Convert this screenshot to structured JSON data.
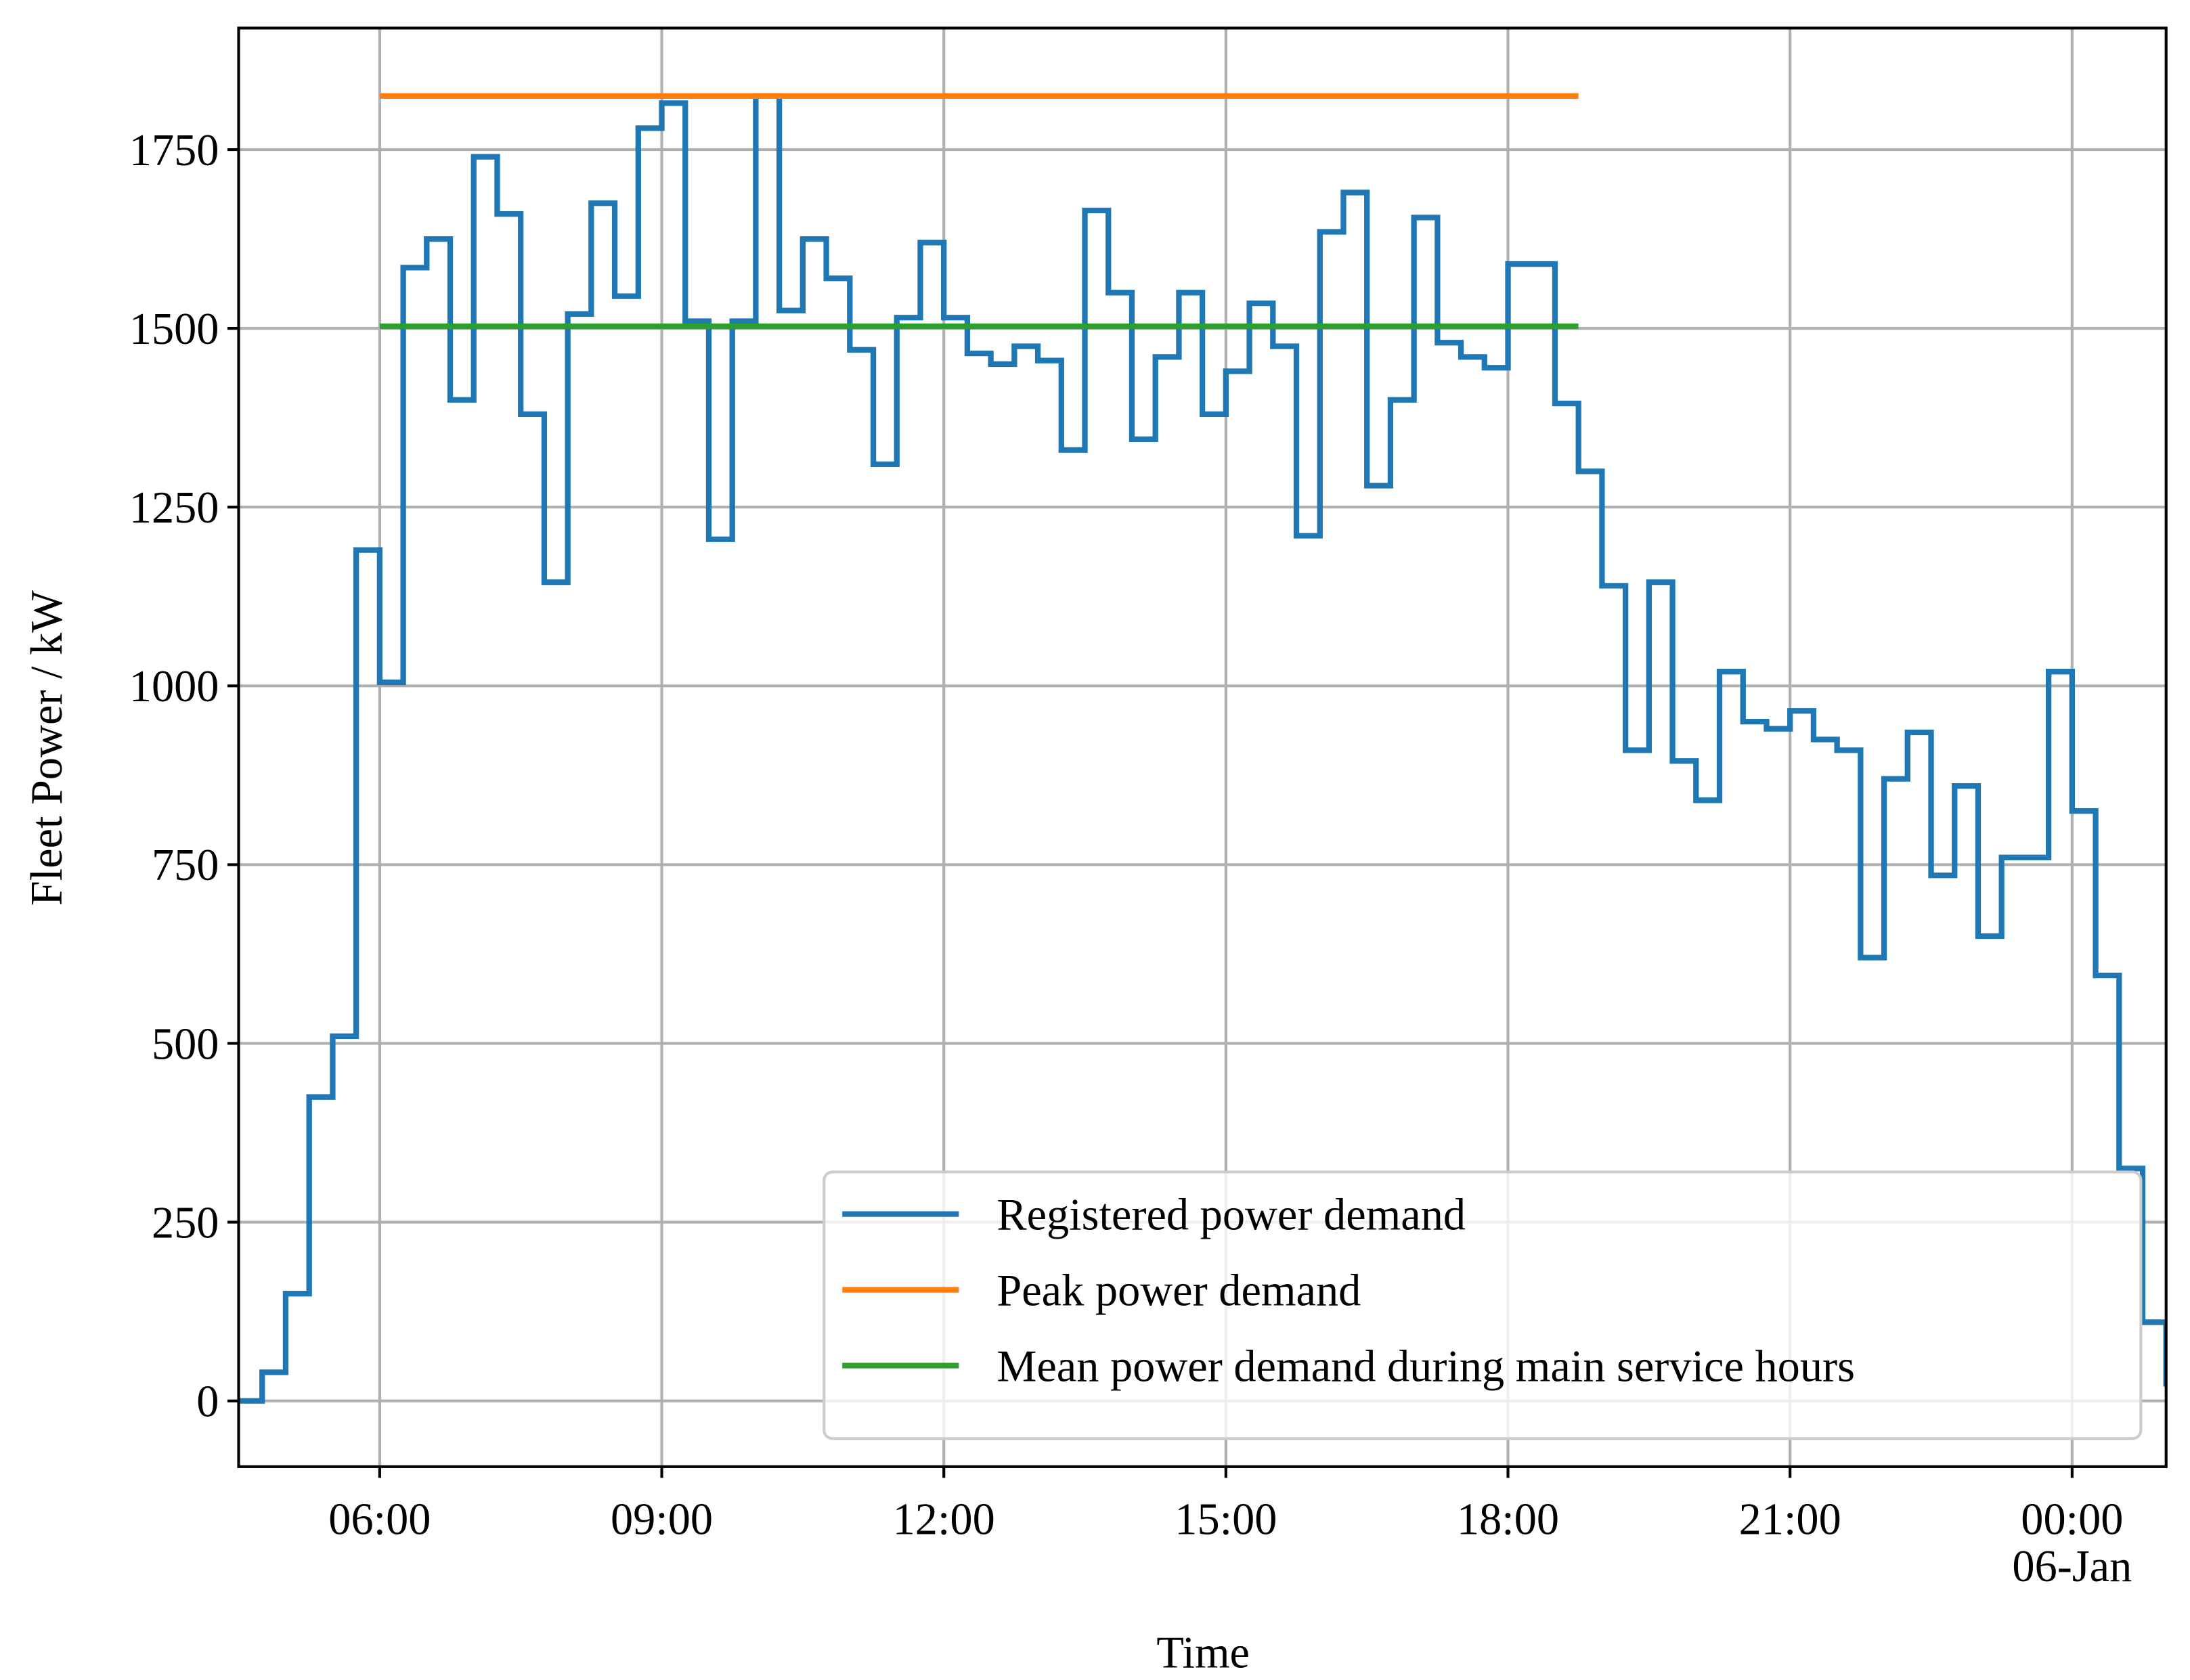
{
  "chart_data": {
    "type": "line",
    "xlabel": "Time",
    "ylabel": "Fleet Power / kW",
    "xlim": [
      4.5,
      25
    ],
    "ylim": [
      -92,
      1920
    ],
    "xticks": [
      {
        "value": 6,
        "label": "06:00"
      },
      {
        "value": 9,
        "label": "09:00"
      },
      {
        "value": 12,
        "label": "12:00"
      },
      {
        "value": 15,
        "label": "15:00"
      },
      {
        "value": 18,
        "label": "18:00"
      },
      {
        "value": 21,
        "label": "21:00"
      },
      {
        "value": 24,
        "label": "00:00\n06-Jan"
      }
    ],
    "yticks": [
      0,
      250,
      500,
      750,
      1000,
      1250,
      1500,
      1750
    ],
    "grid": true,
    "legend": "lower right",
    "series": [
      {
        "name": "Registered power demand",
        "color": "#1f77b4",
        "drawstyle": "steps-post",
        "x": [
          4.5,
          4.75,
          5,
          5.25,
          5.5,
          5.75,
          6,
          6.25,
          6.5,
          6.75,
          7,
          7.25,
          7.5,
          7.75,
          8,
          8.25,
          8.5,
          8.75,
          9,
          9.25,
          9.5,
          9.75,
          10,
          10.25,
          10.5,
          10.75,
          11,
          11.25,
          11.5,
          11.75,
          12,
          12.25,
          12.5,
          12.75,
          13,
          13.25,
          13.5,
          13.75,
          14,
          14.25,
          14.5,
          14.75,
          15,
          15.25,
          15.5,
          15.75,
          16,
          16.25,
          16.5,
          16.75,
          17,
          17.25,
          17.5,
          17.75,
          18,
          18.25,
          18.5,
          18.75,
          19,
          19.25,
          19.5,
          19.75,
          20,
          20.25,
          20.5,
          20.75,
          21,
          21.25,
          21.5,
          21.75,
          22,
          22.25,
          22.5,
          22.75,
          23,
          23.25,
          23.5,
          23.75,
          24,
          24.25,
          24.5,
          24.75,
          25
        ],
        "values": [
          0,
          40,
          150,
          425,
          510,
          1190,
          1005,
          1585,
          1625,
          1400,
          1740,
          1660,
          1380,
          1145,
          1520,
          1675,
          1545,
          1780,
          1815,
          1510,
          1205,
          1510,
          1825,
          1525,
          1625,
          1570,
          1470,
          1310,
          1515,
          1620,
          1515,
          1465,
          1450,
          1475,
          1455,
          1330,
          1665,
          1550,
          1345,
          1460,
          1550,
          1380,
          1440,
          1535,
          1475,
          1210,
          1635,
          1690,
          1280,
          1400,
          1655,
          1480,
          1460,
          1445,
          1590,
          1590,
          1395,
          1300,
          1140,
          910,
          1145,
          895,
          840,
          1020,
          950,
          940,
          965,
          925,
          910,
          620,
          870,
          935,
          735,
          860,
          650,
          760,
          760,
          1020,
          825,
          595,
          325,
          110,
          20
        ]
      },
      {
        "name": "Peak power demand",
        "color": "#ff7f0e",
        "x": [
          6,
          18.75
        ],
        "values": [
          1825,
          1825
        ]
      },
      {
        "name": "Mean power demand during main service hours",
        "color": "#2ca02c",
        "x": [
          6,
          18.75
        ],
        "values": [
          1503,
          1503
        ]
      }
    ]
  }
}
